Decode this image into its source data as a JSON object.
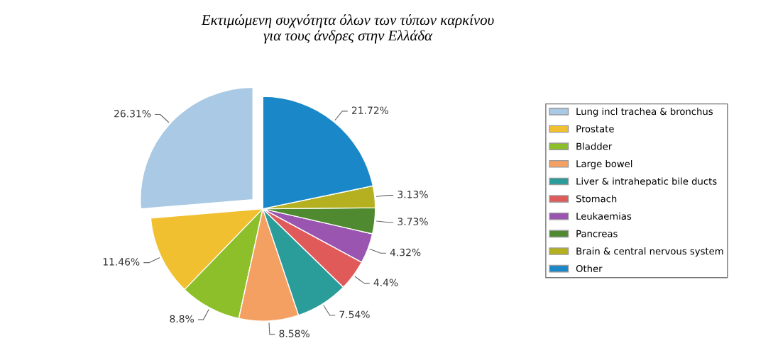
{
  "chart_data": {
    "type": "pie",
    "title": "Εκτιμώμενη συχνότητα όλων των τύπων καρκίνου\nγια τους άνδρες στην Ελλάδα",
    "categories": [
      "Lung incl trachea & bronchus",
      "Prostate",
      "Bladder",
      "Large bowel",
      "Liver & intrahepatic bile ducts",
      "Stomach",
      "Leukaemias",
      "Pancreas",
      "Brain & central nervous system",
      "Other"
    ],
    "values": [
      26.31,
      11.46,
      8.8,
      8.58,
      7.54,
      4.4,
      4.32,
      3.73,
      3.13,
      21.72
    ],
    "value_labels": [
      "26.31%",
      "11.46%",
      "8.8%",
      "8.58%",
      "7.54%",
      "4.4%",
      "4.32%",
      "3.73%",
      "3.13%",
      "21.72%"
    ],
    "colors": [
      "#a9c9e4",
      "#f0c030",
      "#8cbf2a",
      "#f4a062",
      "#2a9d9a",
      "#e05a5a",
      "#9a55b0",
      "#4f8a30",
      "#b5b020",
      "#1a88c8"
    ],
    "legend": "right"
  }
}
